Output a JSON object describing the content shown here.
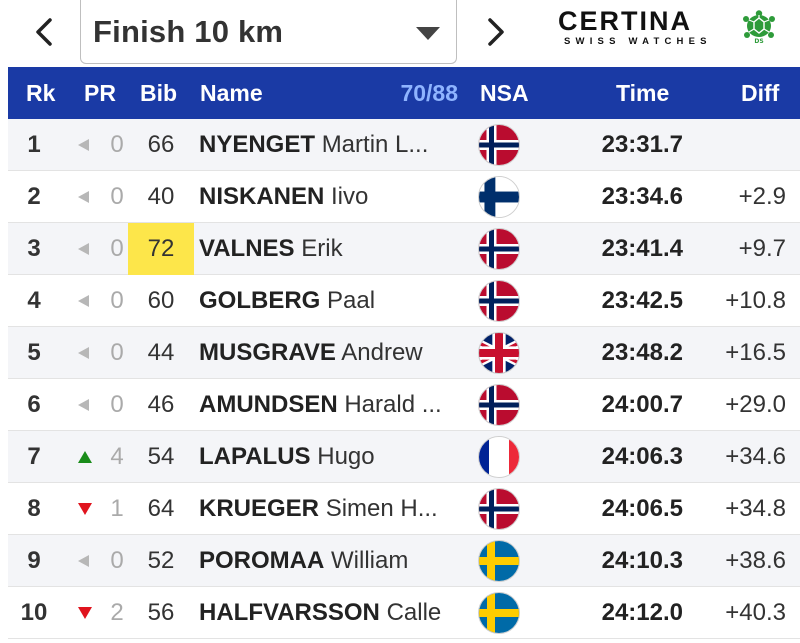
{
  "nav": {
    "selected_race": "Finish 10 km",
    "prev_icon": "chevron-left-icon",
    "next_icon": "chevron-right-icon"
  },
  "sponsor": {
    "brand": "CERTINA",
    "tagline": "SWISS WATCHES",
    "badge": "DS"
  },
  "columns": {
    "rank": "Rk",
    "pr": "PR",
    "bib": "Bib",
    "name": "Name",
    "count": "70/88",
    "nsa": "NSA",
    "time": "Time",
    "diff": "Diff"
  },
  "rows": [
    {
      "rank": "1",
      "trend": "none",
      "pr": "0",
      "bib": "66",
      "surname": "NYENGET",
      "firstname": "Martin L...",
      "nsa": "NOR",
      "time": "23:31.7",
      "diff": "",
      "highlight": false
    },
    {
      "rank": "2",
      "trend": "none",
      "pr": "0",
      "bib": "40",
      "surname": "NISKANEN",
      "firstname": "Iivo",
      "nsa": "FIN",
      "time": "23:34.6",
      "diff": "+2.9",
      "highlight": false
    },
    {
      "rank": "3",
      "trend": "none",
      "pr": "0",
      "bib": "72",
      "surname": "VALNES",
      "firstname": "Erik",
      "nsa": "NOR",
      "time": "23:41.4",
      "diff": "+9.7",
      "highlight": true
    },
    {
      "rank": "4",
      "trend": "none",
      "pr": "0",
      "bib": "60",
      "surname": "GOLBERG",
      "firstname": "Paal",
      "nsa": "NOR",
      "time": "23:42.5",
      "diff": "+10.8",
      "highlight": false
    },
    {
      "rank": "5",
      "trend": "none",
      "pr": "0",
      "bib": "44",
      "surname": "MUSGRAVE",
      "firstname": "Andrew",
      "nsa": "GBR",
      "time": "23:48.2",
      "diff": "+16.5",
      "highlight": false
    },
    {
      "rank": "6",
      "trend": "none",
      "pr": "0",
      "bib": "46",
      "surname": "AMUNDSEN",
      "firstname": "Harald ...",
      "nsa": "NOR",
      "time": "24:00.7",
      "diff": "+29.0",
      "highlight": false
    },
    {
      "rank": "7",
      "trend": "up",
      "pr": "4",
      "bib": "54",
      "surname": "LAPALUS",
      "firstname": "Hugo",
      "nsa": "FRA",
      "time": "24:06.3",
      "diff": "+34.6",
      "highlight": false
    },
    {
      "rank": "8",
      "trend": "down",
      "pr": "1",
      "bib": "64",
      "surname": "KRUEGER",
      "firstname": "Simen H...",
      "nsa": "NOR",
      "time": "24:06.5",
      "diff": "+34.8",
      "highlight": false
    },
    {
      "rank": "9",
      "trend": "none",
      "pr": "0",
      "bib": "52",
      "surname": "POROMAA",
      "firstname": "William",
      "nsa": "SWE",
      "time": "24:10.3",
      "diff": "+38.6",
      "highlight": false
    },
    {
      "rank": "10",
      "trend": "down",
      "pr": "2",
      "bib": "56",
      "surname": "HALFVARSSON",
      "firstname": "Calle",
      "nsa": "SWE",
      "time": "24:12.0",
      "diff": "+40.3",
      "highlight": false
    }
  ],
  "colors": {
    "header_bg": "#1a3aa5",
    "count_text": "#8fb4ff",
    "bib_highlight": "#fde64a",
    "trend_up": "#1a8c1a",
    "trend_down": "#e0141e",
    "trend_none": "#b7b7b7"
  }
}
